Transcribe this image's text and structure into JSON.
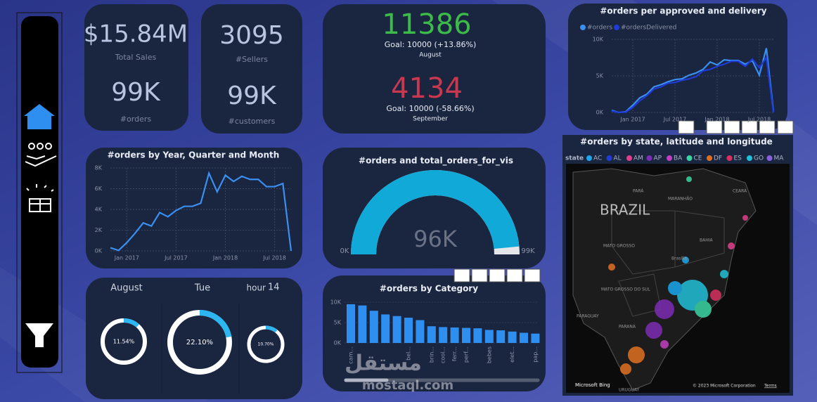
{
  "kpis": {
    "sales": {
      "value": "$15.84M",
      "label": "Total Sales"
    },
    "orders": {
      "value": "99K",
      "label": "#orders"
    },
    "sellers": {
      "value": "3095",
      "label": "#Sellers"
    },
    "customers": {
      "value": "99K",
      "label": "#customers"
    }
  },
  "goals": [
    {
      "value": "11386",
      "goal": "Goal: 10000 (+13.86%)",
      "month": "August",
      "color": "#3dbb4a"
    },
    {
      "value": "4134",
      "goal": "Goal: 10000 (-58.66%)",
      "month": "September",
      "color": "#c8384f"
    }
  ],
  "approved_delivery": {
    "type": "line",
    "title": "#orders per approved and delivery",
    "categories": [
      null,
      null,
      null,
      "Jan 2017",
      null,
      null,
      null,
      null,
      null,
      "Jul 2017",
      null,
      null,
      null,
      null,
      null,
      "Jan 2018",
      null,
      null,
      null,
      null,
      null,
      "Jul 2018",
      null,
      null
    ],
    "series": [
      {
        "name": "#orders",
        "color": "#3a8ff0",
        "values": [
          300,
          0,
          100,
          1000,
          2000,
          2500,
          3500,
          3800,
          4200,
          4500,
          4600,
          5100,
          5400,
          5900,
          6900,
          6500,
          7200,
          7100,
          7100,
          6600,
          7100,
          5100,
          8800,
          200
        ]
      },
      {
        "name": "#ordersDelivered",
        "color": "#1f3bd8",
        "values": [
          200,
          0,
          50,
          700,
          1600,
          2300,
          3200,
          3500,
          4000,
          4100,
          4400,
          4600,
          4900,
          5700,
          5900,
          6300,
          6600,
          7000,
          7000,
          6300,
          7300,
          6100,
          7500,
          0
        ]
      }
    ],
    "ylim": [
      0,
      10000
    ],
    "yticks": [
      {
        "value": 0,
        "label": "0K"
      },
      {
        "value": 5000,
        "label": "5K"
      },
      {
        "value": 10000,
        "label": "10K"
      }
    ],
    "grid": true
  },
  "orders_by_month": {
    "type": "line",
    "title": "#orders by Year, Quarter and Month",
    "categories": [
      null,
      null,
      "Jan 2017",
      null,
      null,
      null,
      null,
      null,
      "Jul 2017",
      null,
      null,
      null,
      null,
      null,
      "Jan 2018",
      null,
      null,
      null,
      null,
      null,
      "Jul 2018",
      null,
      null
    ],
    "series": [
      {
        "name": "#orders",
        "color": "#3a8ff0",
        "values": [
          300,
          50,
          800,
          1700,
          2700,
          2400,
          3700,
          3300,
          3900,
          4300,
          4300,
          4600,
          7500,
          5700,
          7300,
          6700,
          7200,
          6900,
          6900,
          6200,
          6200,
          6500,
          0
        ]
      }
    ],
    "ylim": [
      0,
      8000
    ],
    "yticks": [
      {
        "value": 0,
        "label": "0K"
      },
      {
        "value": 2000,
        "label": "2K"
      },
      {
        "value": 4000,
        "label": "4K"
      },
      {
        "value": 6000,
        "label": "6K"
      },
      {
        "value": 8000,
        "label": "8K"
      }
    ],
    "grid": true
  },
  "gauge": {
    "type": "gauge",
    "title": "#orders and total_orders_for_vis",
    "value": 96000,
    "value_label": "96K",
    "min": 0,
    "min_label": "0K",
    "max": 99000,
    "max_label": "99K",
    "color": "#10a9d8"
  },
  "time": {
    "month": "August",
    "weekday": "Tue",
    "hour_label": "hour",
    "hour": "14"
  },
  "donuts": {
    "type": "donut",
    "values": [
      11.54,
      22.1,
      10.7
    ],
    "value_labels": [
      "11.54%",
      "22.10%",
      "10.70%"
    ],
    "color": "#2cb6f2"
  },
  "category": {
    "type": "bar",
    "title": "#orders by Category",
    "categories": [
      "cam...",
      null,
      null,
      null,
      null,
      "bel...",
      null,
      "brin...",
      "cool...",
      "ferr...",
      "perf...",
      null,
      "bebes",
      null,
      "elet...",
      null,
      "pap..."
    ],
    "values": [
      9500,
      9200,
      7900,
      7000,
      6600,
      6200,
      5600,
      4100,
      3900,
      3800,
      3700,
      3600,
      3200,
      3100,
      2800,
      2500,
      2300
    ],
    "color": "#2e8ff0",
    "ylim": [
      0,
      10000
    ],
    "yticks": [
      {
        "value": 0,
        "label": "0K"
      },
      {
        "value": 5000,
        "label": "5K"
      },
      {
        "value": 10000,
        "label": "10K"
      }
    ]
  },
  "map": {
    "title": "#orders by state, latitude and longitude",
    "legend_title": "state",
    "states": [
      "AC",
      "AL",
      "AM",
      "AP",
      "BA",
      "CE",
      "DF",
      "ES",
      "GO",
      "MA"
    ],
    "colors": [
      "#1aa7ec",
      "#1f3bd8",
      "#e0408b",
      "#7d2db4",
      "#c040c0",
      "#3bd4a2",
      "#e07020",
      "#d83060",
      "#22c0d8",
      "#8a60e0"
    ],
    "country": "BRAZIL",
    "places": [
      "PARÁ",
      "MARANHÃO",
      "CEARÁ",
      "BAHIA",
      "MATO GROSSO",
      "Brasília",
      "MATO GROSSO DO SUL",
      "PARAGUAY",
      "PARANÁ",
      "URUGUAY"
    ],
    "provider": "Microsoft Bing",
    "credits": "© 2023 Microsoft Corporation",
    "terms": "Terms"
  },
  "watermark": {
    "arabic": "مستقل",
    "latin": "mostaql.com"
  }
}
